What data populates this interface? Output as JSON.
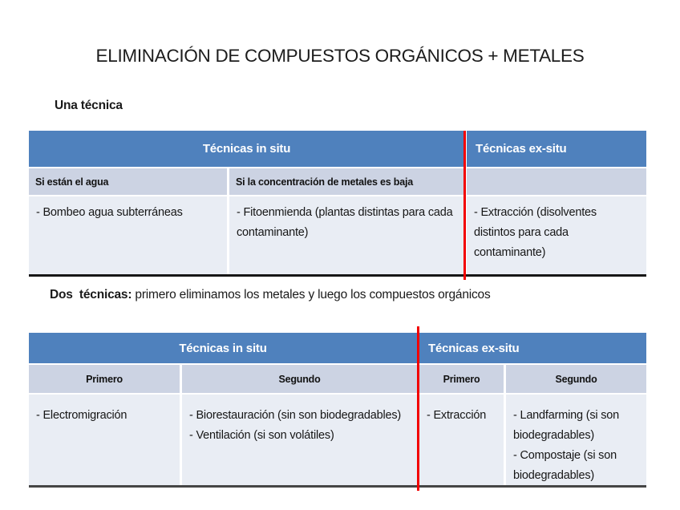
{
  "slide": {
    "title": "ELIMINACIÓN DE COMPUESTOS ORGÁNICOS + METALES"
  },
  "sections": {
    "one": {
      "label": "Una técnica"
    },
    "two": {
      "label_bold": "Dos  técnicas:",
      "label_rest": " primero eliminamos los metales y luego los compuestos orgánicos"
    }
  },
  "colors": {
    "header_blue": "#4f81bd",
    "band_medium": "#ccd3e3",
    "band_light": "#e9edf4",
    "divider_red": "#f20000"
  },
  "table_one": {
    "header_insitu": "Técnicas in situ",
    "header_exsitu": "Técnicas ex-situ",
    "sub_col1": "Si están el agua",
    "sub_col2": "Si la concentración de metales es baja",
    "sub_col3": "",
    "body_col1": "- Bombeo agua subterráneas",
    "body_col2": "- Fitoenmienda (plantas distintas para cada contaminante)",
    "body_col3": "- Extracción (disolventes distintos para cada contaminante)"
  },
  "table_two": {
    "header_insitu": "Técnicas in situ",
    "header_exsitu": "Técnicas ex-situ",
    "sub_col1": "Primero",
    "sub_col2": "Segundo",
    "sub_col3": "Primero",
    "sub_col4": "Segundo",
    "body_col1": "- Electromigración",
    "body_col2_item1": "- Biorestauración (sin son biodegradables)",
    "body_col2_item2": "- Ventilación (si son volátiles)",
    "body_col3": "- Extracción",
    "body_col4_item1": "- Landfarming (si son biodegradables)",
    "body_col4_item2": "- Compostaje (si son biodegradables)"
  }
}
